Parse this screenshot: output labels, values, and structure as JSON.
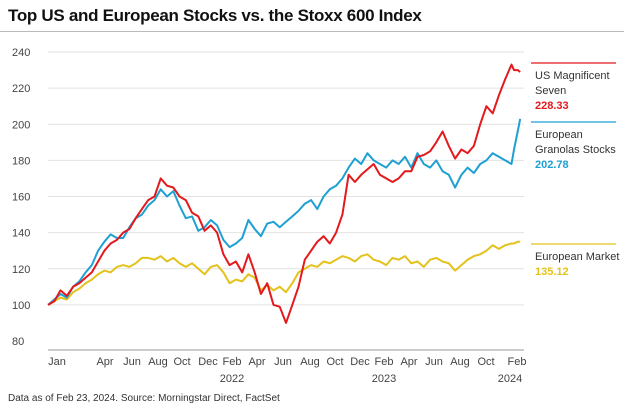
{
  "chart_data": {
    "type": "line",
    "title": "Top US and European Stocks vs. the Stoxx 600 Index",
    "xlabel": "",
    "ylabel": "",
    "ylim": [
      80,
      240
    ],
    "yticks": [
      80,
      100,
      120,
      140,
      160,
      180,
      200,
      220,
      240
    ],
    "x_tick_labels": [
      "Jan",
      "Apr",
      "Jun",
      "Aug",
      "Oct",
      "Dec",
      "Feb",
      "Apr",
      "Jun",
      "Aug",
      "Oct",
      "Dec",
      "Feb",
      "Apr",
      "Jun",
      "Aug",
      "Oct",
      "Feb"
    ],
    "year_labels": [
      "2022",
      "2023",
      "2024"
    ],
    "x_unit": "months since start of 2021",
    "series": [
      {
        "name": "US Magnificent Seven",
        "name_lines": [
          "US Magnificent",
          "Seven"
        ],
        "last_value": "228.33",
        "color": "#e3191c",
        "x": [
          0,
          0.5,
          1,
          1.5,
          2,
          2.5,
          3,
          3.5,
          4,
          4.5,
          5,
          5.5,
          6,
          6.5,
          7,
          7.5,
          8,
          8.5,
          9,
          9.5,
          10,
          10.5,
          11,
          11.5,
          12,
          12.5,
          13,
          13.5,
          14,
          14.5,
          15,
          15.5,
          16,
          16.5,
          17,
          17.5,
          18,
          18.5,
          19,
          19.5,
          20,
          20.5,
          21,
          21.5,
          22,
          22.5,
          23,
          23.5,
          24,
          24.5,
          25,
          25.5,
          26,
          26.5,
          27,
          27.5,
          28,
          28.5,
          29,
          29.5,
          30,
          30.5,
          31,
          31.5,
          32,
          32.5,
          33,
          33.5,
          34,
          34.5,
          35,
          35.5,
          36,
          36.5,
          37,
          37.2,
          37.5,
          37.7
        ],
        "values": [
          100,
          102,
          108,
          105,
          110,
          112,
          115,
          118,
          124,
          130,
          134,
          136,
          140,
          142,
          148,
          153,
          158,
          160,
          170,
          166,
          165,
          160,
          158,
          151,
          149,
          141,
          144,
          140,
          128,
          122,
          124,
          118,
          128,
          118,
          106,
          112,
          100,
          99,
          90,
          100,
          110,
          125,
          130,
          135,
          138,
          134,
          140,
          150,
          172,
          168,
          172,
          175,
          178,
          172,
          170,
          168,
          170,
          174,
          174,
          182,
          183,
          185,
          190,
          196,
          188,
          181,
          186,
          184,
          188,
          200,
          210,
          206,
          216,
          225,
          233,
          230,
          230,
          229
        ]
      },
      {
        "name": "European Granolas Stocks",
        "name_lines": [
          "European",
          "Granolas Stocks"
        ],
        "last_value": "202.78",
        "color": "#1ea0d3",
        "x": [
          0,
          0.5,
          1,
          1.5,
          2,
          2.5,
          3,
          3.5,
          4,
          4.5,
          5,
          5.5,
          6,
          6.5,
          7,
          7.5,
          8,
          8.5,
          9,
          9.5,
          10,
          10.5,
          11,
          11.5,
          12,
          12.5,
          13,
          13.5,
          14,
          14.5,
          15,
          15.5,
          16,
          16.5,
          17,
          17.5,
          18,
          18.5,
          19,
          19.5,
          20,
          20.5,
          21,
          21.5,
          22,
          22.5,
          23,
          23.5,
          24,
          24.5,
          25,
          25.5,
          26,
          26.5,
          27,
          27.5,
          28,
          28.5,
          29,
          29.5,
          30,
          30.5,
          31,
          31.5,
          32,
          32.5,
          33,
          33.5,
          34,
          34.5,
          35,
          35.5,
          36,
          36.5,
          37,
          37.2,
          37.5,
          37.7
        ],
        "values": [
          100,
          103,
          106,
          104,
          110,
          113,
          118,
          122,
          130,
          135,
          139,
          137,
          137,
          143,
          148,
          150,
          155,
          158,
          164,
          160,
          163,
          155,
          148,
          149,
          141,
          143,
          147,
          144,
          136,
          132,
          134,
          137,
          147,
          142,
          138,
          145,
          146,
          143,
          146,
          149,
          152,
          156,
          158,
          153,
          160,
          164,
          166,
          170,
          176,
          181,
          178,
          184,
          180,
          178,
          176,
          180,
          178,
          182,
          176,
          184,
          178,
          176,
          180,
          174,
          172,
          165,
          172,
          176,
          173,
          178,
          180,
          184,
          182,
          180,
          178,
          186,
          196,
          203
        ]
      },
      {
        "name": "European Market",
        "name_lines": [
          "European Market"
        ],
        "last_value": "135.12",
        "color": "#e3c21b",
        "x": [
          0,
          0.5,
          1,
          1.5,
          2,
          2.5,
          3,
          3.5,
          4,
          4.5,
          5,
          5.5,
          6,
          6.5,
          7,
          7.5,
          8,
          8.5,
          9,
          9.5,
          10,
          10.5,
          11,
          11.5,
          12,
          12.5,
          13,
          13.5,
          14,
          14.5,
          15,
          15.5,
          16,
          16.5,
          17,
          17.5,
          18,
          18.5,
          19,
          19.5,
          20,
          20.5,
          21,
          21.5,
          22,
          22.5,
          23,
          23.5,
          24,
          24.5,
          25,
          25.5,
          26,
          26.5,
          27,
          27.5,
          28,
          28.5,
          29,
          29.5,
          30,
          30.5,
          31,
          31.5,
          32,
          32.5,
          33,
          33.5,
          34,
          34.5,
          35,
          35.5,
          36,
          36.5,
          37,
          37.2,
          37.5,
          37.7
        ],
        "values": [
          100,
          102,
          104,
          103,
          107,
          109,
          112,
          114,
          117,
          119,
          118,
          121,
          122,
          121,
          123,
          126,
          126,
          125,
          127,
          124,
          126,
          123,
          121,
          123,
          120,
          117,
          121,
          122,
          118,
          112,
          114,
          113,
          117,
          115,
          108,
          111,
          108,
          110,
          107,
          112,
          118,
          120,
          122,
          121,
          124,
          123,
          125,
          127,
          126,
          124,
          127,
          128,
          125,
          124,
          122,
          126,
          125,
          127,
          123,
          124,
          121,
          125,
          126,
          124,
          123,
          119,
          122,
          125,
          127,
          128,
          130,
          133,
          131,
          133,
          134,
          134,
          135,
          135
        ]
      }
    ]
  },
  "source": "Data as of Feb 23, 2024. Source: Morningstar Direct, FactSet"
}
